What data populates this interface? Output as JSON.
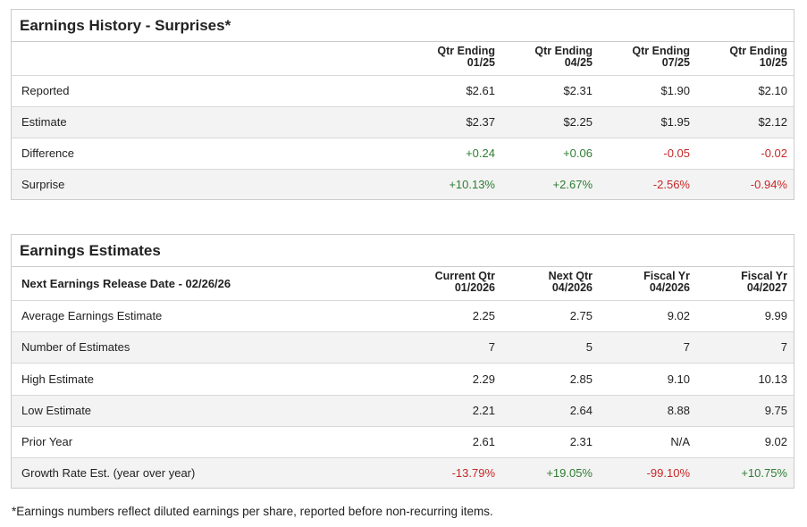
{
  "history": {
    "title": "Earnings History - Surprises*",
    "columns": [
      [
        "Qtr Ending",
        "01/25"
      ],
      [
        "Qtr Ending",
        "04/25"
      ],
      [
        "Qtr Ending",
        "07/25"
      ],
      [
        "Qtr Ending",
        "10/25"
      ]
    ],
    "rows": [
      {
        "label": "Reported",
        "values": [
          "$2.61",
          "$2.31",
          "$1.90",
          "$2.10"
        ]
      },
      {
        "label": "Estimate",
        "values": [
          "$2.37",
          "$2.25",
          "$1.95",
          "$2.12"
        ]
      },
      {
        "label": "Difference",
        "values": [
          "+0.24",
          "+0.06",
          "-0.05",
          "-0.02"
        ]
      },
      {
        "label": "Surprise",
        "values": [
          "+10.13%",
          "+2.67%",
          "-2.56%",
          "-0.94%"
        ]
      }
    ]
  },
  "estimates": {
    "title": "Earnings Estimates",
    "header_label": "Next Earnings Release Date - 02/26/26",
    "columns": [
      [
        "Current Qtr",
        "01/2026"
      ],
      [
        "Next Qtr",
        "04/2026"
      ],
      [
        "Fiscal Yr",
        "04/2026"
      ],
      [
        "Fiscal Yr",
        "04/2027"
      ]
    ],
    "rows": [
      {
        "label": "Average Earnings Estimate",
        "values": [
          "2.25",
          "2.75",
          "9.02",
          "9.99"
        ]
      },
      {
        "label": "Number of Estimates",
        "values": [
          "7",
          "5",
          "7",
          "7"
        ]
      },
      {
        "label": "High Estimate",
        "values": [
          "2.29",
          "2.85",
          "9.10",
          "10.13"
        ]
      },
      {
        "label": "Low Estimate",
        "values": [
          "2.21",
          "2.64",
          "8.88",
          "9.75"
        ]
      },
      {
        "label": "Prior Year",
        "values": [
          "2.61",
          "2.31",
          "N/A",
          "9.02"
        ]
      },
      {
        "label": "Growth Rate Est. (year over year)",
        "values": [
          "-13.79%",
          "+19.05%",
          "-99.10%",
          "+10.75%"
        ]
      }
    ]
  },
  "footnote": "*Earnings numbers reflect diluted earnings per share, reported before non-recurring items.",
  "colors": {
    "positive": "#2e7d32",
    "negative": "#c62828"
  }
}
